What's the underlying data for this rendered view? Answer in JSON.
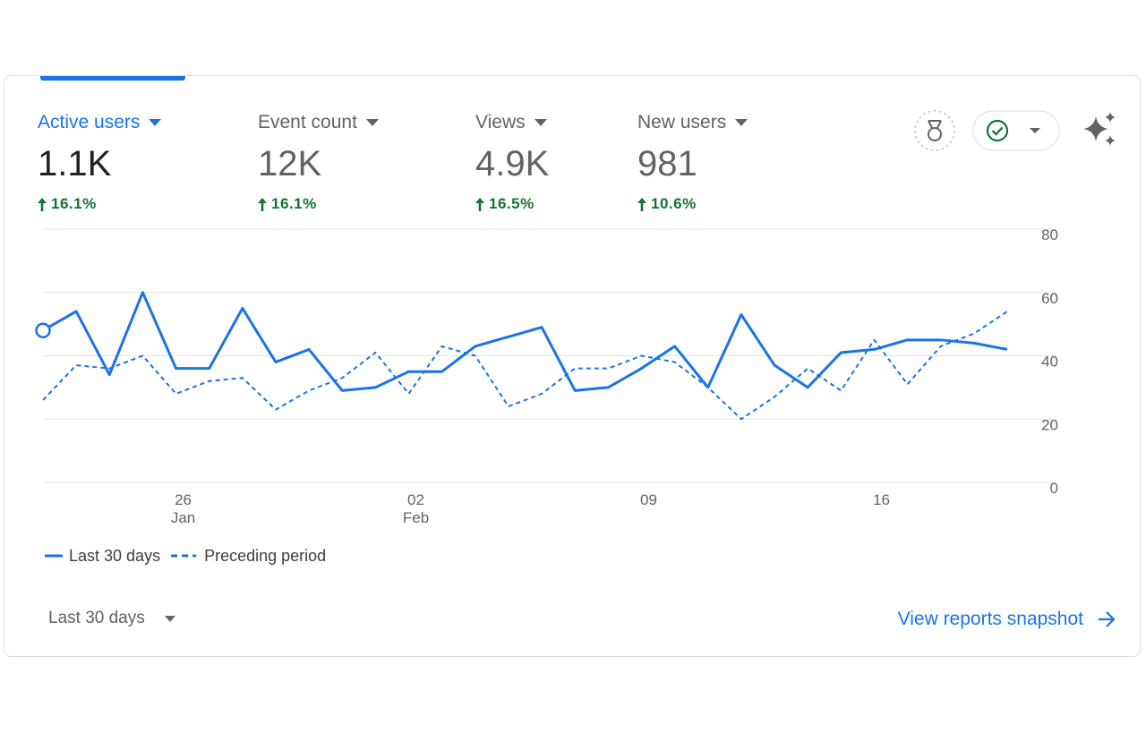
{
  "metrics": [
    {
      "label": "Active users",
      "value": "1.1K",
      "change": "16.1%"
    },
    {
      "label": "Event count",
      "value": "12K",
      "change": "16.1%"
    },
    {
      "label": "Views",
      "value": "4.9K",
      "change": "16.5%"
    },
    {
      "label": "New users",
      "value": "981",
      "change": "10.6%"
    }
  ],
  "chart_data": {
    "type": "line",
    "series": [
      {
        "name": "Last 30 days",
        "color": "#1a73e8",
        "line_style": "solid",
        "values": [
          48,
          54,
          34,
          60,
          36,
          36,
          55,
          38,
          42,
          29,
          30,
          35,
          35,
          43,
          46,
          49,
          29,
          30,
          36,
          43,
          30,
          53,
          37,
          30,
          41,
          42,
          45,
          45,
          44,
          42
        ]
      },
      {
        "name": "Preceding period",
        "color": "#1a73e8",
        "line_style": "dashed",
        "values": [
          26,
          37,
          36,
          40,
          28,
          32,
          33,
          23,
          29,
          33,
          41,
          28,
          43,
          40,
          24,
          28,
          36,
          36,
          40,
          38,
          30,
          20,
          27,
          36,
          29,
          45,
          31,
          43,
          47,
          54
        ]
      }
    ],
    "xticks": [
      {
        "value": 4,
        "label": "26",
        "month": "Jan"
      },
      {
        "value": 11,
        "label": "02",
        "month": "Feb"
      },
      {
        "value": 18,
        "label": "09"
      },
      {
        "value": 25,
        "label": "16"
      }
    ],
    "ylim": [
      0,
      80
    ],
    "yticks": [
      0,
      20,
      40,
      60,
      80
    ],
    "grid": true,
    "legend": "bottom-left"
  },
  "footer": {
    "date_range": "Last 30 days",
    "link": "View reports snapshot"
  }
}
